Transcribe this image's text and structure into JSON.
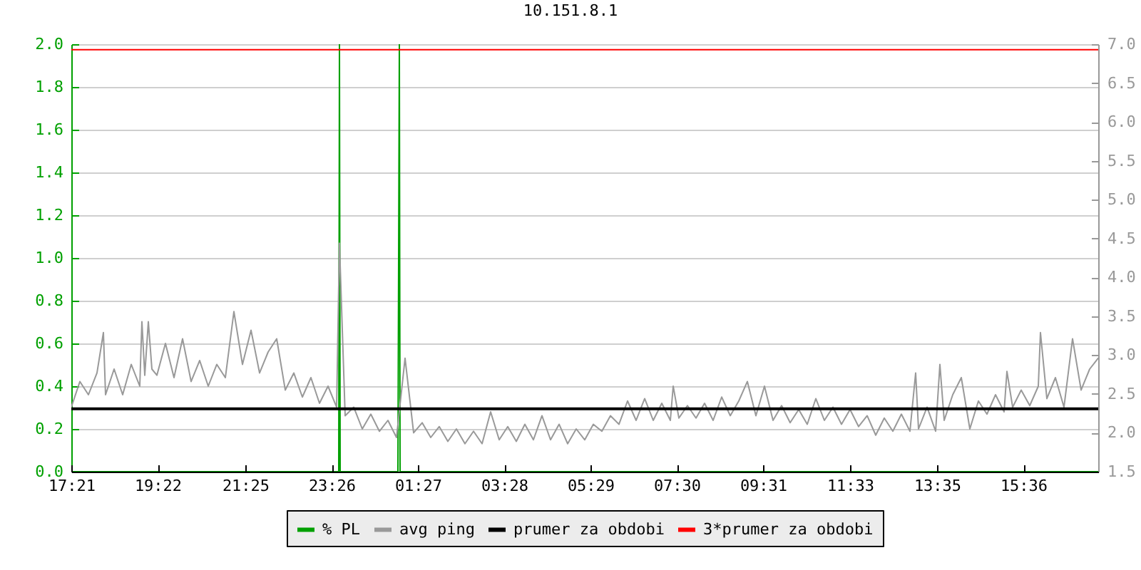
{
  "chart_data": {
    "type": "line",
    "title": "10.151.8.1",
    "xlim": [
      "--01-01T17:21",
      "--01-02T17:21"
    ],
    "xticks": [
      {
        "value": "--01-01T17:21",
        "label": "17:21"
      },
      {
        "value": "--01-01T19:22",
        "label": "19:22"
      },
      {
        "value": "--01-01T21:25",
        "label": "21:25"
      },
      {
        "value": "--01-01T23:26",
        "label": "23:26"
      },
      {
        "value": "--01-02T01:27",
        "label": "01:27"
      },
      {
        "value": "--01-02T03:28",
        "label": "03:28"
      },
      {
        "value": "--01-02T05:29",
        "label": "05:29"
      },
      {
        "value": "--01-02T07:30",
        "label": "07:30"
      },
      {
        "value": "--01-02T09:31",
        "label": "09:31"
      },
      {
        "value": "--01-02T11:33",
        "label": "11:33"
      },
      {
        "value": "--01-02T13:35",
        "label": "13:35"
      },
      {
        "value": "--01-02T15:36",
        "label": "15:36"
      }
    ],
    "ylim": [
      0,
      2
    ],
    "yticks": [
      {
        "value": 0,
        "label": "0.0"
      },
      0.2,
      0.4,
      0.6,
      0.8,
      {
        "value": 1,
        "label": "1.0"
      },
      1.2,
      1.4,
      1.6,
      1.8,
      {
        "value": 2,
        "label": "2.0"
      }
    ],
    "y2lim": [
      1.5,
      7
    ],
    "y2ticks": [
      1.5,
      {
        "value": 2,
        "label": "2.0"
      },
      2.5,
      {
        "value": 3,
        "label": "3.0"
      },
      3.5,
      {
        "value": 4,
        "label": "4.0"
      },
      4.5,
      {
        "value": 5,
        "label": "5.0"
      },
      5.5,
      {
        "value": 6,
        "label": "6.0"
      },
      6.5,
      {
        "value": 7,
        "label": "7.0"
      }
    ],
    "grid": "y",
    "legend": "bottom",
    "series": [
      {
        "name": "% PL",
        "color": "#00a000",
        "x": [
          "--01-01T17:21",
          "--01-01T23:36",
          "--01-01T23:37",
          "--01-01T23:38",
          "--01-02T00:59",
          "--01-02T01:00",
          "--01-02T01:01",
          "--01-02T01:02",
          "--01-02T17:21"
        ],
        "values": [
          0,
          0,
          2,
          0,
          0,
          1,
          2,
          0,
          0
        ]
      },
      {
        "name": "avg ping",
        "color": "#999999",
        "axis": "y2",
        "x": [
          "--01-01T17:21",
          "--01-01T17:33",
          "--01-01T17:45",
          "--01-01T17:57",
          "--01-01T18:06",
          "--01-01T18:09",
          "--01-01T18:21",
          "--01-01T18:33",
          "--01-01T18:45",
          "--01-01T18:57",
          "--01-01T19:00",
          "--01-01T19:04",
          "--01-01T19:09",
          "--01-01T19:14",
          "--01-01T19:21",
          "--01-01T19:33",
          "--01-01T19:45",
          "--01-01T19:57",
          "--01-01T20:09",
          "--01-01T20:21",
          "--01-01T20:33",
          "--01-01T20:45",
          "--01-01T20:57",
          "--01-01T21:09",
          "--01-01T21:21",
          "--01-01T21:33",
          "--01-01T21:45",
          "--01-01T21:57",
          "--01-01T22:09",
          "--01-01T22:21",
          "--01-01T22:33",
          "--01-01T22:45",
          "--01-01T22:57",
          "--01-01T23:09",
          "--01-01T23:21",
          "--01-01T23:33",
          "--01-01T23:37",
          "--01-01T23:45",
          "--01-01T23:57",
          "--01-02T00:09",
          "--01-02T00:21",
          "--01-02T00:33",
          "--01-02T00:45",
          "--01-02T00:57",
          "--01-02T01:09",
          "--01-02T01:21",
          "--01-02T01:33",
          "--01-02T01:45",
          "--01-02T01:57",
          "--01-02T02:09",
          "--01-02T02:21",
          "--01-02T02:33",
          "--01-02T02:45",
          "--01-02T02:57",
          "--01-02T03:09",
          "--01-02T03:21",
          "--01-02T03:33",
          "--01-02T03:45",
          "--01-02T03:57",
          "--01-02T04:09",
          "--01-02T04:21",
          "--01-02T04:33",
          "--01-02T04:45",
          "--01-02T04:57",
          "--01-02T05:09",
          "--01-02T05:21",
          "--01-02T05:33",
          "--01-02T05:45",
          "--01-02T05:57",
          "--01-02T06:09",
          "--01-02T06:21",
          "--01-02T06:33",
          "--01-02T06:45",
          "--01-02T06:57",
          "--01-02T07:09",
          "--01-02T07:21",
          "--01-02T07:25",
          "--01-02T07:33",
          "--01-02T07:45",
          "--01-02T07:57",
          "--01-02T08:09",
          "--01-02T08:21",
          "--01-02T08:33",
          "--01-02T08:45",
          "--01-02T08:57",
          "--01-02T09:09",
          "--01-02T09:21",
          "--01-02T09:33",
          "--01-02T09:45",
          "--01-02T09:57",
          "--01-02T10:09",
          "--01-02T10:21",
          "--01-02T10:33",
          "--01-02T10:45",
          "--01-02T10:57",
          "--01-02T11:09",
          "--01-02T11:21",
          "--01-02T11:33",
          "--01-02T11:45",
          "--01-02T11:57",
          "--01-02T12:09",
          "--01-02T12:21",
          "--01-02T12:33",
          "--01-02T12:45",
          "--01-02T12:57",
          "--01-02T13:05",
          "--01-02T13:09",
          "--01-02T13:21",
          "--01-02T13:33",
          "--01-02T13:39",
          "--01-02T13:45",
          "--01-02T13:57",
          "--01-02T14:09",
          "--01-02T14:21",
          "--01-02T14:33",
          "--01-02T14:45",
          "--01-02T14:57",
          "--01-02T15:09",
          "--01-02T15:13",
          "--01-02T15:21",
          "--01-02T15:33",
          "--01-02T15:45",
          "--01-02T15:57",
          "--01-02T16:00",
          "--01-02T16:09",
          "--01-02T16:21",
          "--01-02T16:33",
          "--01-02T16:45",
          "--01-02T16:57",
          "--01-02T17:09",
          "--01-02T17:21"
        ],
        "values": [
          2.33,
          2.66,
          2.49,
          2.77,
          3.29,
          2.49,
          2.82,
          2.49,
          2.88,
          2.6,
          3.43,
          2.74,
          3.43,
          2.82,
          2.74,
          3.15,
          2.71,
          3.21,
          2.66,
          2.93,
          2.6,
          2.88,
          2.71,
          3.56,
          2.88,
          3.32,
          2.77,
          3.04,
          3.21,
          2.55,
          2.77,
          2.46,
          2.71,
          2.38,
          2.6,
          2.33,
          4.44,
          2.22,
          2.33,
          2.05,
          2.24,
          2.02,
          2.16,
          1.94,
          2.96,
          2.0,
          2.13,
          1.94,
          2.08,
          1.89,
          2.05,
          1.86,
          2.02,
          1.86,
          2.27,
          1.91,
          2.08,
          1.89,
          2.11,
          1.91,
          2.22,
          1.91,
          2.11,
          1.86,
          2.05,
          1.91,
          2.11,
          2.02,
          2.22,
          2.11,
          2.41,
          2.16,
          2.44,
          2.16,
          2.38,
          2.16,
          2.6,
          2.19,
          2.35,
          2.19,
          2.38,
          2.16,
          2.46,
          2.22,
          2.41,
          2.66,
          2.22,
          2.6,
          2.16,
          2.35,
          2.13,
          2.3,
          2.11,
          2.44,
          2.16,
          2.33,
          2.11,
          2.3,
          2.08,
          2.22,
          1.97,
          2.19,
          2.02,
          2.24,
          2.02,
          2.77,
          2.05,
          2.33,
          2.02,
          2.88,
          2.16,
          2.49,
          2.71,
          2.05,
          2.41,
          2.24,
          2.49,
          2.27,
          2.79,
          2.33,
          2.55,
          2.35,
          2.6,
          3.29,
          2.44,
          2.71,
          2.33,
          3.21,
          2.55,
          2.82,
          2.96
        ]
      },
      {
        "name": "prumer za obdobi",
        "color": "#000000",
        "axis": "y2",
        "x": [
          "--01-01T17:21",
          "--01-02T17:21"
        ],
        "values": [
          2.31,
          2.31
        ]
      },
      {
        "name": "3*prumer za obdobi",
        "color": "#ff0000",
        "axis": "y2",
        "x": [
          "--01-01T17:21",
          "--01-02T17:21"
        ],
        "values": [
          6.93,
          6.93
        ]
      }
    ]
  }
}
